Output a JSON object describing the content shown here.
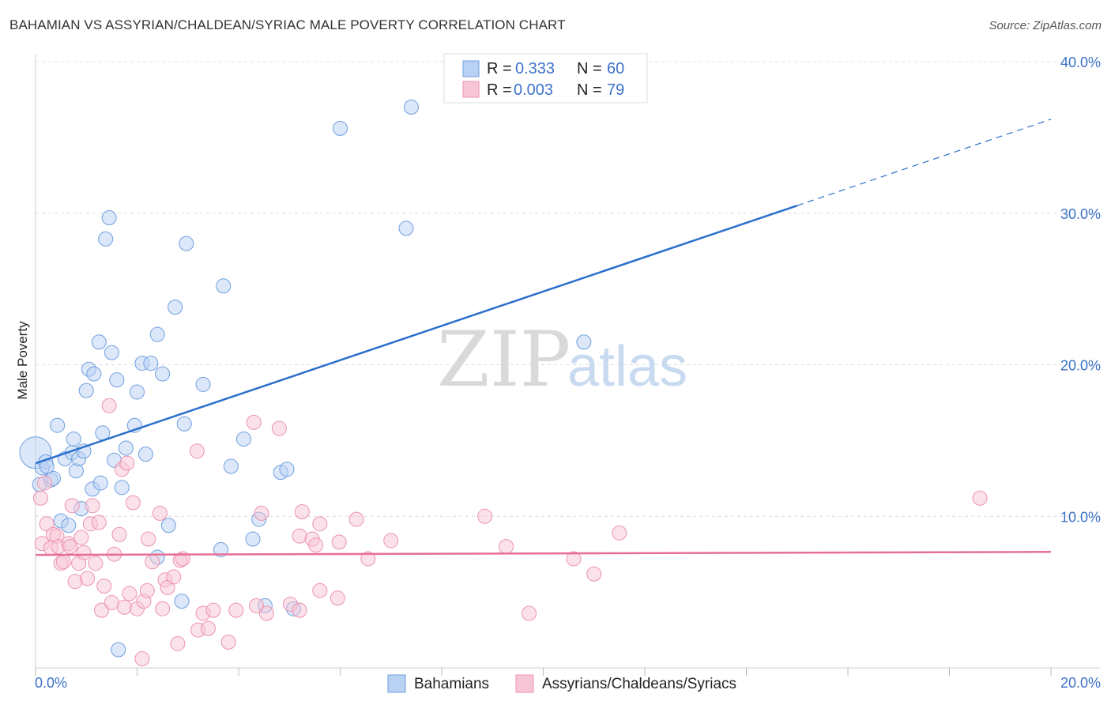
{
  "chart_data": {
    "type": "scatter",
    "title": "BAHAMIAN VS ASSYRIAN/CHALDEAN/SYRIAC MALE POVERTY CORRELATION CHART",
    "source": "Source: ZipAtlas.com",
    "ylabel": "Male Poverty",
    "xlim": [
      0,
      20
    ],
    "ylim": [
      0,
      40
    ],
    "x_tick_labels": [
      "0.0%",
      "20.0%"
    ],
    "y_ticks": [
      10,
      20,
      30,
      40
    ],
    "y_tick_labels": [
      "10.0%",
      "20.0%",
      "30.0%",
      "40.0%"
    ],
    "watermark": {
      "zip": "ZIP",
      "atlas": "atlas"
    },
    "legend": [
      {
        "r_label": "R =",
        "r_value": "0.333",
        "n_label": "N =",
        "n_value": "60"
      },
      {
        "r_label": "R =",
        "r_value": "0.003",
        "n_label": "N =",
        "n_value": "79"
      }
    ],
    "series": [
      {
        "name": "Bahamians",
        "color": "#6f9fe0",
        "fill": "#b9d2f3",
        "trend_color": "#2b6fcc",
        "trend": {
          "x0": 0,
          "y0": 13.5,
          "x1": 15,
          "y1": 30.5,
          "x_end": 20,
          "y_end": 36.2
        },
        "points": [
          [
            0,
            14.2
          ],
          [
            0.08,
            12.1
          ],
          [
            0.13,
            13.2
          ],
          [
            0.2,
            13.6
          ],
          [
            0.22,
            13.3
          ],
          [
            0.3,
            12.4
          ],
          [
            0.35,
            12.5
          ],
          [
            0.43,
            16.0
          ],
          [
            0.5,
            9.7
          ],
          [
            0.58,
            13.8
          ],
          [
            0.65,
            9.4
          ],
          [
            0.72,
            14.2
          ],
          [
            0.75,
            15.1
          ],
          [
            0.8,
            13.0
          ],
          [
            0.85,
            13.8
          ],
          [
            0.9,
            10.5
          ],
          [
            0.95,
            14.3
          ],
          [
            1.0,
            18.3
          ],
          [
            1.05,
            19.7
          ],
          [
            1.15,
            19.4
          ],
          [
            1.12,
            11.8
          ],
          [
            1.25,
            21.5
          ],
          [
            1.28,
            12.2
          ],
          [
            1.32,
            15.5
          ],
          [
            1.38,
            28.3
          ],
          [
            1.45,
            29.7
          ],
          [
            1.5,
            20.8
          ],
          [
            1.55,
            13.7
          ],
          [
            1.6,
            19.0
          ],
          [
            1.63,
            1.2
          ],
          [
            1.7,
            11.9
          ],
          [
            1.78,
            14.5
          ],
          [
            1.95,
            16.0
          ],
          [
            2.0,
            18.2
          ],
          [
            2.1,
            20.1
          ],
          [
            2.17,
            14.1
          ],
          [
            2.27,
            20.1
          ],
          [
            2.4,
            22.0
          ],
          [
            2.4,
            7.3
          ],
          [
            2.5,
            19.4
          ],
          [
            2.62,
            9.4
          ],
          [
            2.75,
            23.8
          ],
          [
            2.88,
            4.4
          ],
          [
            2.93,
            16.1
          ],
          [
            2.97,
            28.0
          ],
          [
            3.3,
            18.7
          ],
          [
            3.7,
            25.2
          ],
          [
            3.85,
            13.3
          ],
          [
            3.65,
            7.8
          ],
          [
            4.1,
            15.1
          ],
          [
            4.28,
            8.5
          ],
          [
            4.4,
            9.8
          ],
          [
            4.52,
            4.1
          ],
          [
            4.83,
            12.9
          ],
          [
            4.95,
            13.1
          ],
          [
            5.08,
            3.9
          ],
          [
            6.0,
            35.6
          ],
          [
            7.3,
            29.0
          ],
          [
            7.4,
            37.0
          ],
          [
            10.8,
            21.5
          ]
        ]
      },
      {
        "name": "Assyrians/Chaldeans/Syriacs",
        "color": "#ec92b0",
        "fill": "#f7c6d6",
        "trend_color": "#e76f95",
        "trend": {
          "x0": 0,
          "y0": 7.45,
          "x1": 20,
          "y1": 7.65
        },
        "points": [
          [
            0.1,
            11.2
          ],
          [
            0.13,
            8.2
          ],
          [
            0.18,
            12.2
          ],
          [
            0.22,
            9.5
          ],
          [
            0.3,
            7.9
          ],
          [
            0.35,
            8.8
          ],
          [
            0.42,
            8.7
          ],
          [
            0.45,
            8.0
          ],
          [
            0.5,
            6.9
          ],
          [
            0.55,
            7.0
          ],
          [
            0.65,
            8.2
          ],
          [
            0.68,
            8.0
          ],
          [
            0.72,
            10.7
          ],
          [
            0.78,
            5.7
          ],
          [
            0.85,
            6.9
          ],
          [
            0.9,
            8.6
          ],
          [
            0.95,
            7.6
          ],
          [
            1.02,
            5.9
          ],
          [
            1.08,
            9.5
          ],
          [
            1.12,
            10.7
          ],
          [
            1.18,
            6.9
          ],
          [
            1.25,
            9.6
          ],
          [
            1.3,
            3.8
          ],
          [
            1.35,
            5.4
          ],
          [
            1.45,
            17.3
          ],
          [
            1.5,
            4.3
          ],
          [
            1.55,
            7.5
          ],
          [
            1.65,
            8.8
          ],
          [
            1.7,
            13.1
          ],
          [
            1.75,
            4.0
          ],
          [
            1.8,
            13.5
          ],
          [
            1.85,
            4.9
          ],
          [
            1.92,
            10.9
          ],
          [
            2.0,
            3.9
          ],
          [
            2.1,
            0.6
          ],
          [
            2.13,
            4.4
          ],
          [
            2.2,
            5.1
          ],
          [
            2.22,
            8.5
          ],
          [
            2.3,
            7.0
          ],
          [
            2.45,
            10.2
          ],
          [
            2.5,
            3.9
          ],
          [
            2.55,
            5.8
          ],
          [
            2.6,
            5.3
          ],
          [
            2.72,
            6.0
          ],
          [
            2.8,
            1.6
          ],
          [
            2.85,
            7.1
          ],
          [
            2.9,
            7.2
          ],
          [
            3.2,
            2.5
          ],
          [
            3.18,
            14.3
          ],
          [
            3.3,
            3.6
          ],
          [
            3.4,
            2.6
          ],
          [
            3.5,
            3.8
          ],
          [
            3.8,
            1.7
          ],
          [
            3.95,
            3.8
          ],
          [
            4.3,
            16.2
          ],
          [
            4.35,
            4.1
          ],
          [
            4.45,
            10.2
          ],
          [
            4.55,
            3.6
          ],
          [
            4.8,
            15.8
          ],
          [
            5.02,
            4.2
          ],
          [
            5.2,
            3.8
          ],
          [
            5.2,
            8.7
          ],
          [
            5.25,
            10.3
          ],
          [
            5.45,
            8.5
          ],
          [
            5.52,
            8.1
          ],
          [
            5.6,
            5.1
          ],
          [
            5.6,
            9.5
          ],
          [
            5.95,
            4.6
          ],
          [
            5.98,
            8.3
          ],
          [
            6.32,
            9.8
          ],
          [
            6.55,
            7.2
          ],
          [
            7.0,
            8.4
          ],
          [
            8.85,
            10.0
          ],
          [
            9.27,
            8.0
          ],
          [
            9.72,
            3.6
          ],
          [
            10.6,
            7.2
          ],
          [
            11.0,
            6.2
          ],
          [
            11.5,
            8.9
          ],
          [
            18.6,
            11.2
          ]
        ]
      }
    ]
  }
}
